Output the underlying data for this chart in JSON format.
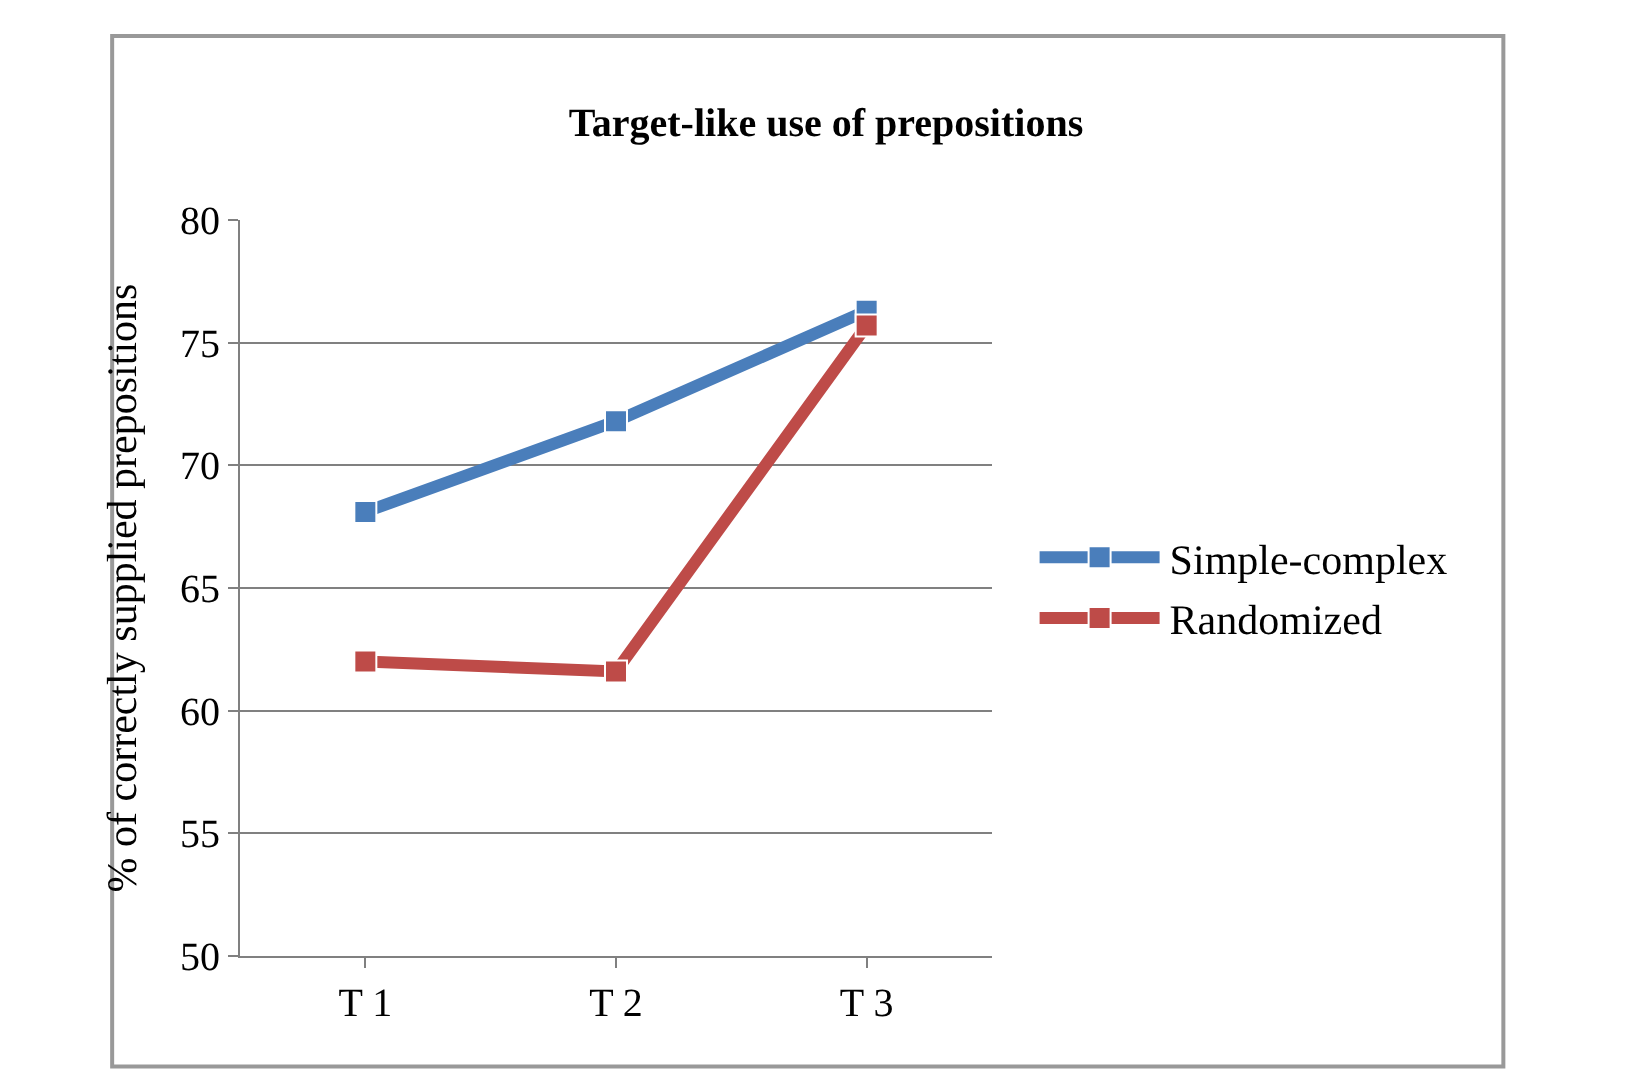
{
  "chart_data": {
    "type": "line",
    "title": "Target-like use of prepositions",
    "ylabel": "% of correctly supplied prepositions",
    "categories": [
      "T 1",
      "T 2",
      "T 3"
    ],
    "series": [
      {
        "name": "Simple-complex",
        "color": "#4a7ebb",
        "values": [
          68.1,
          71.8,
          76.3
        ]
      },
      {
        "name": "Randomized",
        "color": "#be4b48",
        "values": [
          62.0,
          61.6,
          75.7
        ]
      }
    ],
    "ylim": [
      50,
      80
    ],
    "yticks": [
      50,
      55,
      60,
      65,
      70,
      75,
      80
    ],
    "grid": "y",
    "legend": "right",
    "marker": "square",
    "line_style": "solid"
  }
}
